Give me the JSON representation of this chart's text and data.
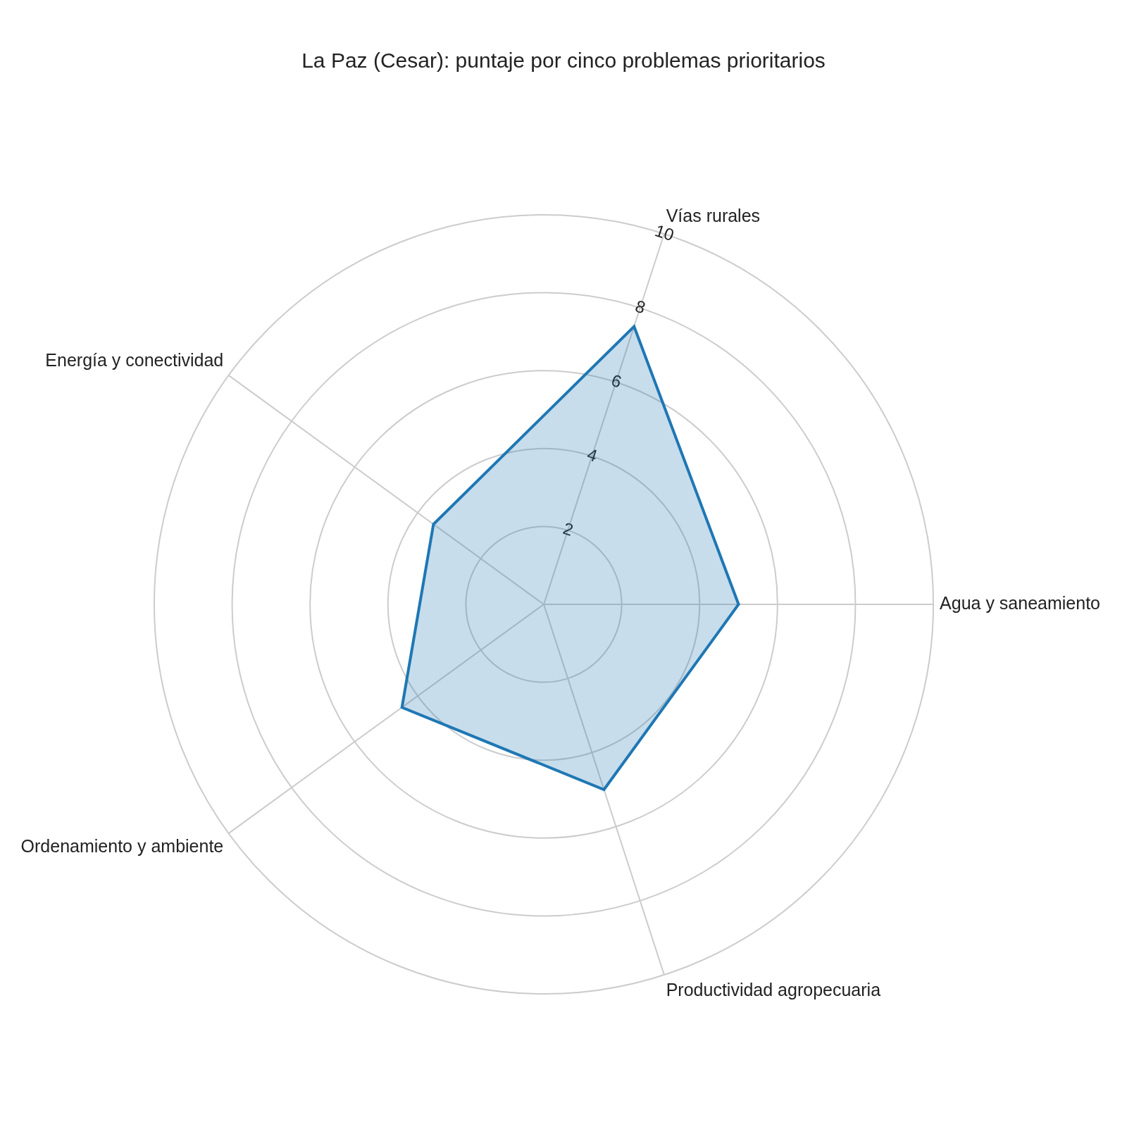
{
  "chart_data": {
    "type": "radar",
    "title": "La Paz (Cesar): puntaje por cinco problemas prioritarios",
    "categories": [
      "Vías rurales",
      "Agua y saneamiento",
      "Productividad agropecuaria",
      "Ordenamiento y ambiente",
      "Energía y conectividad"
    ],
    "series": [
      {
        "color": "#1f77b4",
        "values": [
          7.5,
          5,
          5,
          4.5,
          3.5
        ]
      }
    ],
    "ylim": [
      0,
      10
    ],
    "yticks": [
      2,
      4,
      6,
      8,
      10
    ],
    "grid": true,
    "marker": "none",
    "legend": false
  }
}
